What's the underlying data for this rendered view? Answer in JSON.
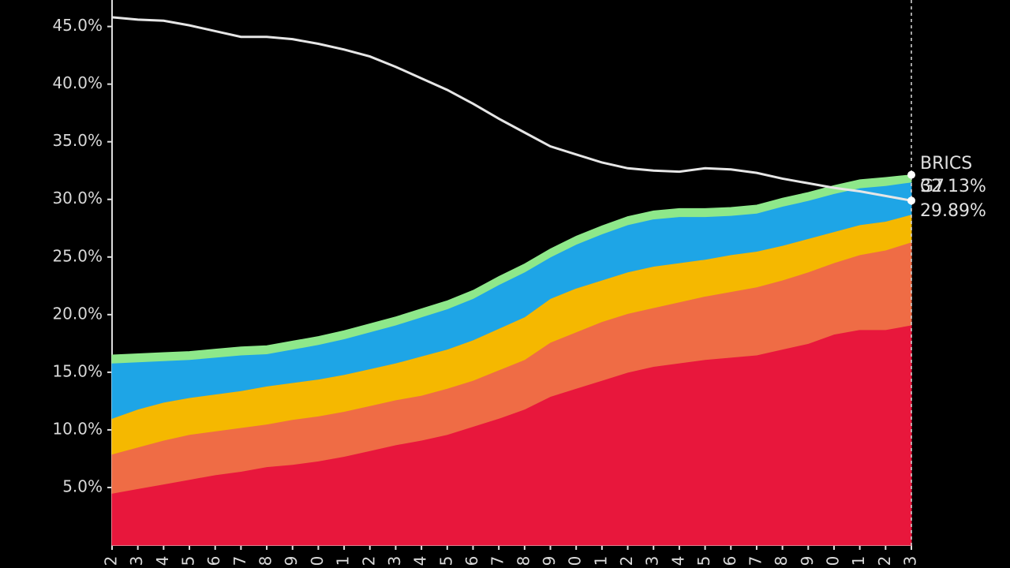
{
  "chart_data": {
    "type": "stacked-area",
    "categories": [
      "2",
      "3",
      "4",
      "5",
      "6",
      "7",
      "8",
      "9",
      "0",
      "1",
      "2",
      "3",
      "4",
      "5",
      "6",
      "7",
      "8",
      "9",
      "0",
      "1",
      "2",
      "3",
      "4",
      "5",
      "6",
      "7",
      "8",
      "9",
      "0",
      "1",
      "2",
      "3"
    ],
    "series": [
      {
        "color": "#e8173c",
        "values": [
          4.5,
          4.9,
          5.3,
          5.7,
          6.1,
          6.4,
          6.8,
          7.0,
          7.3,
          7.7,
          8.2,
          8.7,
          9.1,
          9.6,
          10.3,
          11.0,
          11.8,
          12.9,
          13.6,
          14.3,
          15.0,
          15.5,
          15.8,
          16.1,
          16.3,
          16.5,
          17.0,
          17.5,
          18.3,
          18.7,
          18.7,
          19.1
        ]
      },
      {
        "color": "#ef6c45",
        "values": [
          3.4,
          3.6,
          3.8,
          3.9,
          3.8,
          3.8,
          3.7,
          3.9,
          3.9,
          3.9,
          3.9,
          3.9,
          3.9,
          4.0,
          4.0,
          4.2,
          4.3,
          4.7,
          4.9,
          5.1,
          5.1,
          5.1,
          5.3,
          5.5,
          5.7,
          5.9,
          6.0,
          6.2,
          6.2,
          6.5,
          6.9,
          7.2
        ]
      },
      {
        "color": "#f5b800",
        "values": [
          3.1,
          3.3,
          3.3,
          3.2,
          3.2,
          3.2,
          3.3,
          3.2,
          3.2,
          3.2,
          3.2,
          3.2,
          3.4,
          3.4,
          3.5,
          3.6,
          3.7,
          3.8,
          3.8,
          3.6,
          3.6,
          3.6,
          3.4,
          3.2,
          3.2,
          3.1,
          3.0,
          2.9,
          2.7,
          2.6,
          2.5,
          2.4
        ]
      },
      {
        "color": "#1ea5e6",
        "values": [
          4.8,
          4.1,
          3.6,
          3.3,
          3.2,
          3.1,
          2.8,
          2.9,
          3.0,
          3.1,
          3.2,
          3.3,
          3.4,
          3.5,
          3.6,
          3.8,
          3.9,
          3.6,
          3.8,
          4.0,
          4.1,
          4.1,
          4.0,
          3.7,
          3.4,
          3.3,
          3.4,
          3.3,
          3.3,
          3.2,
          3.1,
          2.8
        ]
      },
      {
        "color": "#8ee88a",
        "values": [
          0.7,
          0.7,
          0.7,
          0.7,
          0.7,
          0.7,
          0.7,
          0.7,
          0.7,
          0.7,
          0.7,
          0.7,
          0.7,
          0.7,
          0.7,
          0.7,
          0.7,
          0.7,
          0.7,
          0.7,
          0.7,
          0.7,
          0.7,
          0.7,
          0.7,
          0.7,
          0.7,
          0.7,
          0.7,
          0.7,
          0.7,
          0.63
        ]
      }
    ],
    "line": {
      "color": "#e6e6e6",
      "values": [
        45.8,
        45.6,
        45.5,
        45.1,
        44.6,
        44.1,
        44.1,
        43.9,
        43.5,
        43.0,
        42.4,
        41.5,
        40.5,
        39.5,
        38.3,
        37.0,
        35.8,
        34.6,
        33.9,
        33.2,
        32.7,
        32.5,
        32.4,
        32.7,
        32.6,
        32.3,
        31.8,
        31.4,
        31.0,
        30.7,
        30.3,
        29.89
      ]
    },
    "ylim": [
      0,
      47.3
    ],
    "yticks": [
      {
        "value": 5,
        "label": "5.0%"
      },
      {
        "value": 10,
        "label": "10.0%"
      },
      {
        "value": 15,
        "label": "15.0%"
      },
      {
        "value": 20,
        "label": "20.0%"
      },
      {
        "value": 25,
        "label": "25.0%"
      },
      {
        "value": 30,
        "label": "30.0%"
      },
      {
        "value": 35,
        "label": "35.0%"
      },
      {
        "value": 40,
        "label": "40.0%"
      },
      {
        "value": 45,
        "label": "45.0%"
      }
    ],
    "annotations": {
      "brics": "BRICS",
      "brics_value": "32.13%",
      "g7": "G7",
      "g7_value": "29.89%"
    }
  }
}
